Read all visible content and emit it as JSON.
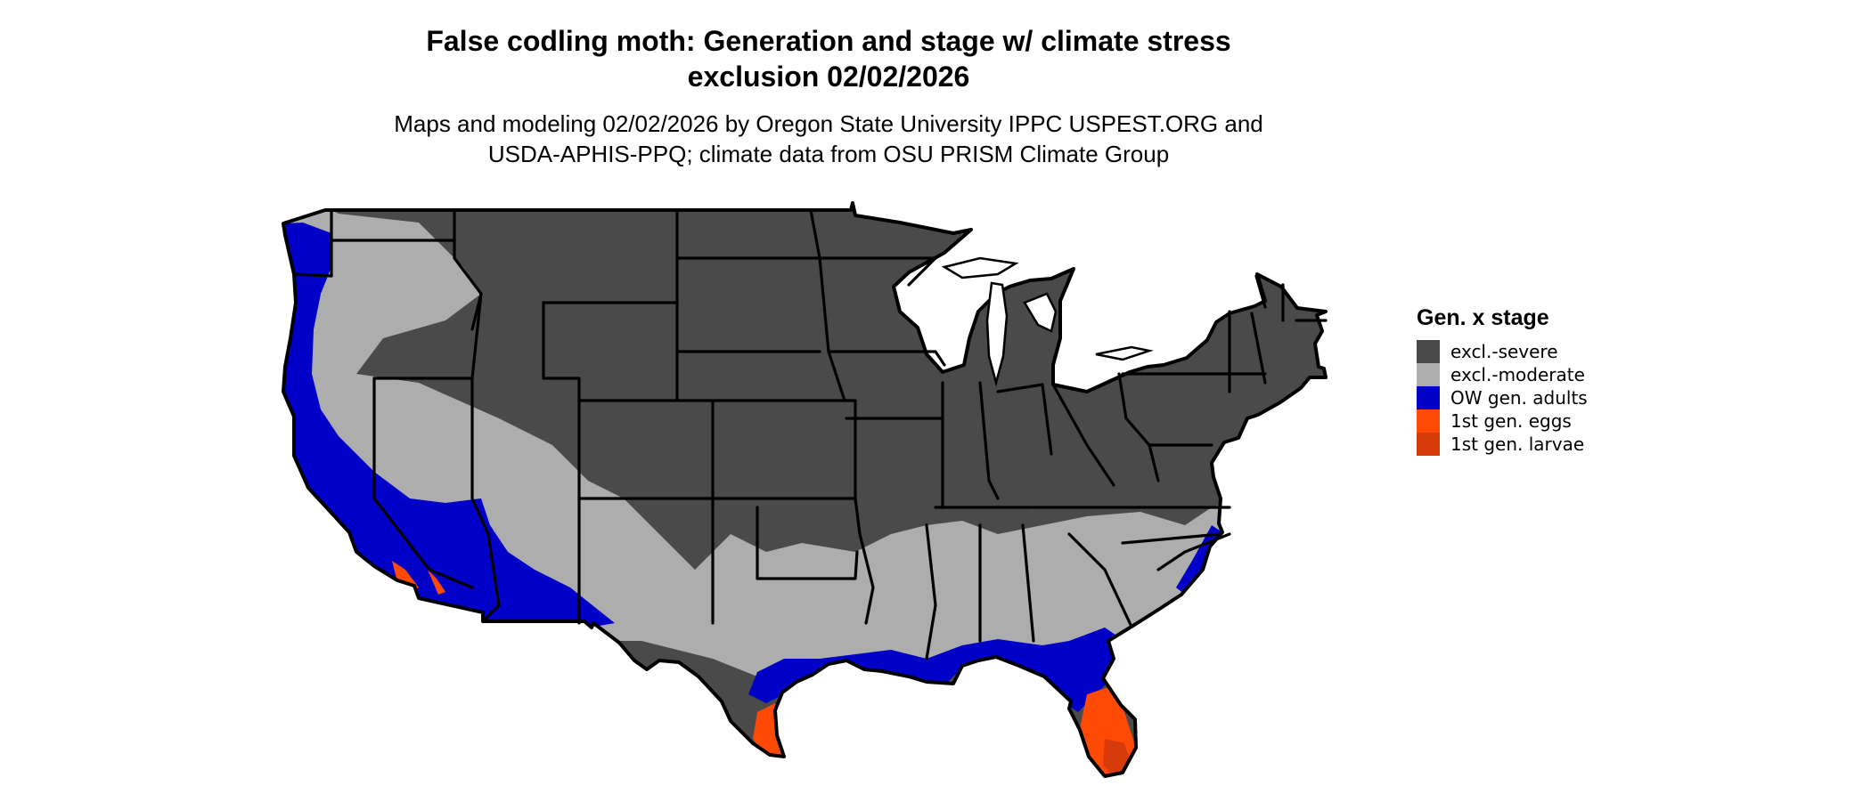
{
  "map": {
    "title_line1": "False codling moth: Generation and stage w/ climate stress",
    "title_line2": "exclusion 02/02/2026",
    "subtitle_line1": "Maps and modeling 02/02/2026 by Oregon State University IPPC USPEST.ORG and",
    "subtitle_line2": "USDA-APHIS-PPQ; climate data from OSU PRISM Climate Group",
    "region": "contiguous United States"
  },
  "legend": {
    "title": "Gen. x stage",
    "items": [
      {
        "label": "excl.-severe",
        "color": "#4a4a4a"
      },
      {
        "label": "excl.-moderate",
        "color": "#adadad"
      },
      {
        "label": "OW gen. adults",
        "color": "#0000c8"
      },
      {
        "label": "1st gen. eggs",
        "color": "#ff4a05"
      },
      {
        "label": "1st gen. larvae",
        "color": "#d63a0a"
      }
    ]
  },
  "colors": {
    "background": "#ffffff",
    "state_border": "#000000"
  }
}
